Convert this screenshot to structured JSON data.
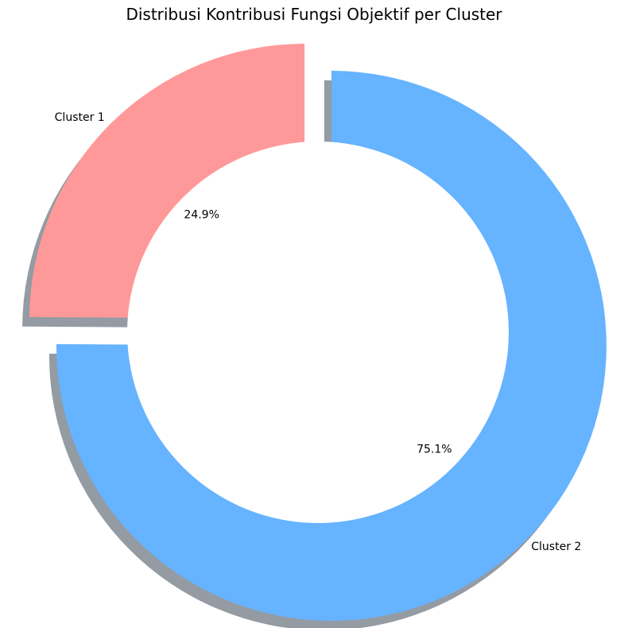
{
  "chart_data": {
    "type": "pie",
    "variant": "donut",
    "title": "Distribusi Kontribusi Fungsi Objektif per Cluster",
    "categories": [
      "Cluster 1",
      "Cluster 2"
    ],
    "values": [
      24.9,
      75.1
    ],
    "value_labels": [
      "24.9%",
      "75.1%"
    ],
    "colors": [
      "#ff9999",
      "#66b3ff"
    ],
    "shadow_color": "#5a6670",
    "start_angle_deg": 90,
    "direction": "counterclockwise",
    "exploded": true,
    "shadow": true
  }
}
